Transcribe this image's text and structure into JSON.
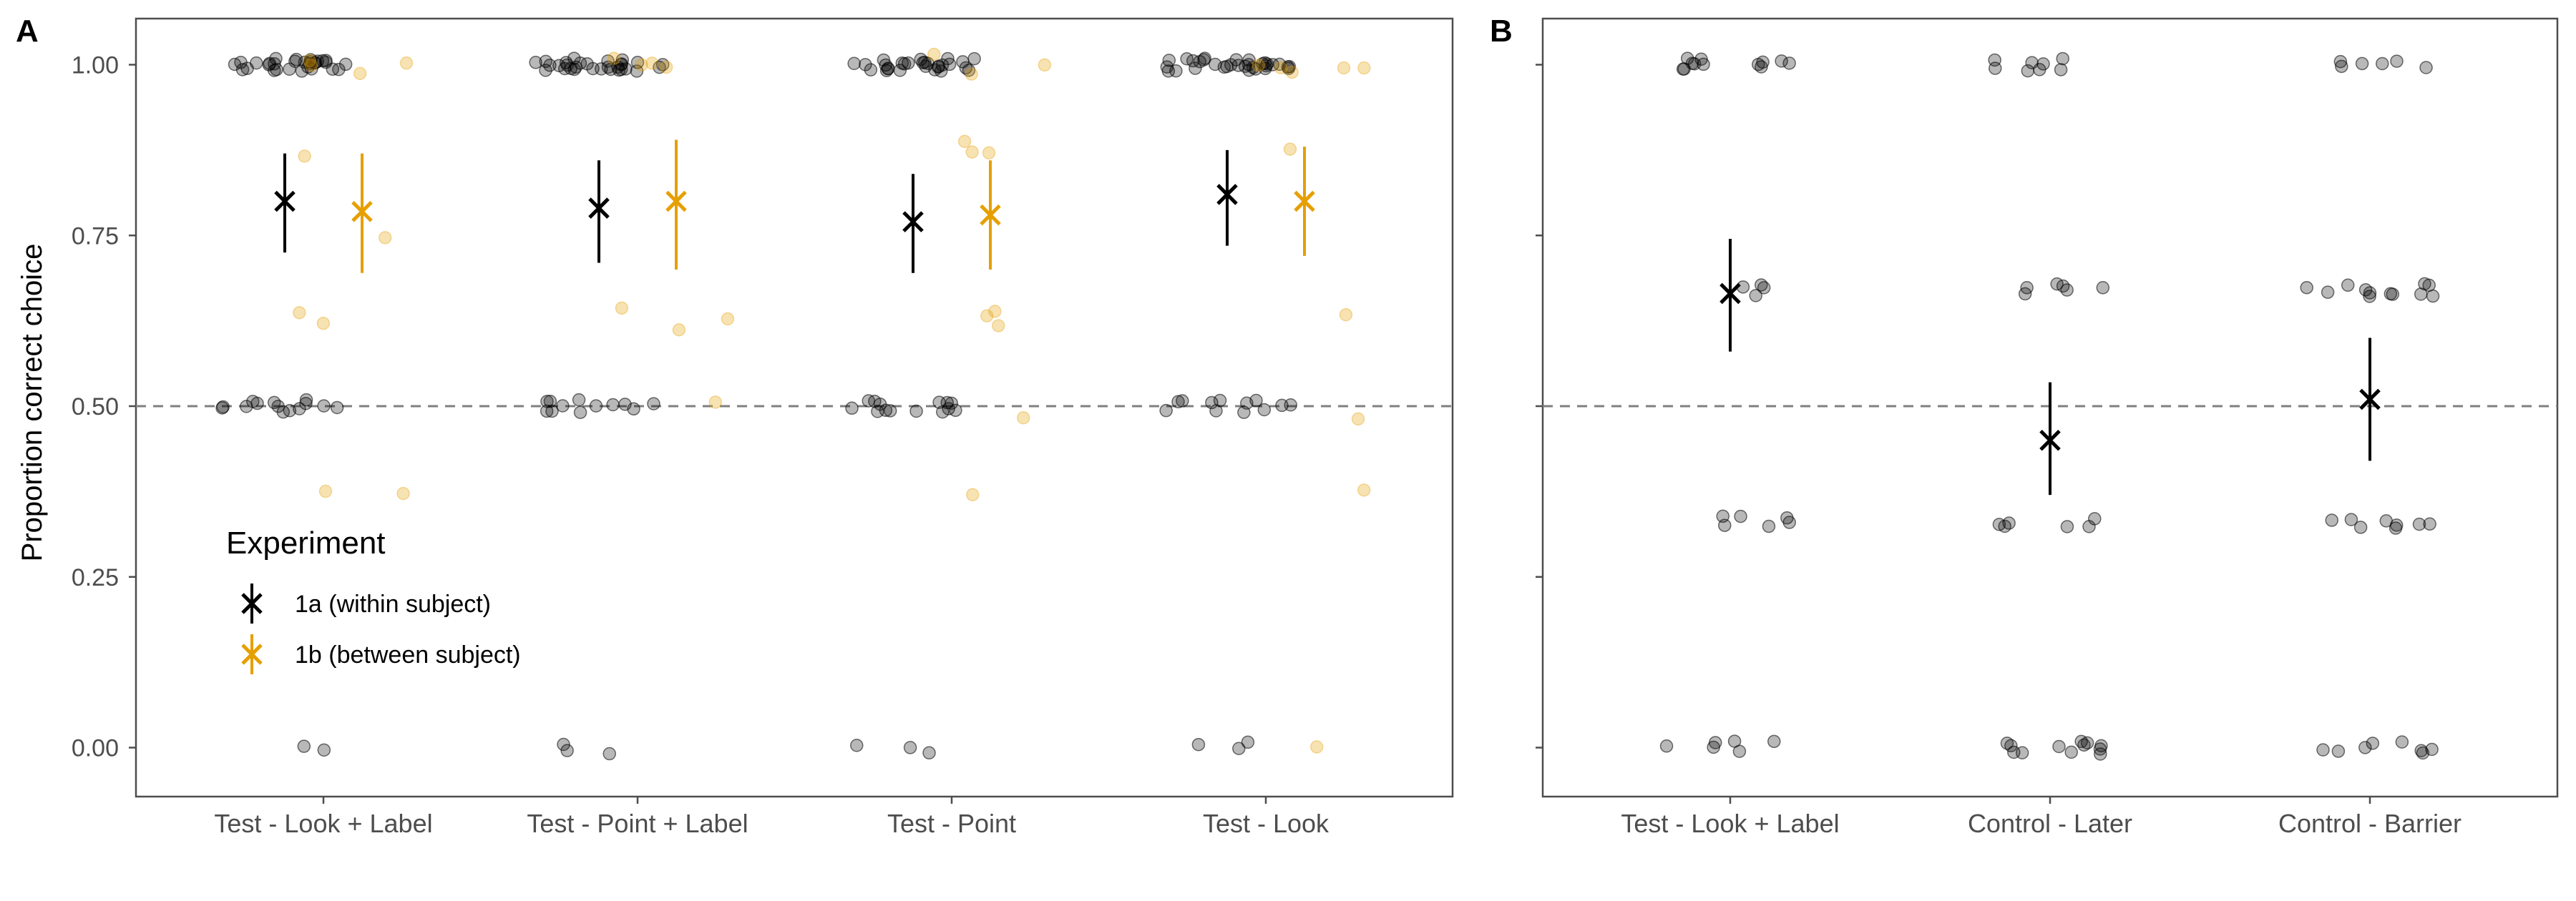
{
  "colors": {
    "exp1a": "#000000",
    "exp1b": "#E69F00",
    "panel_border": "#4d4d4d",
    "reference_line": "#7f7f7f",
    "tick_text": "#4d4d4d"
  },
  "shared_ylabel": "Proportion correct choice",
  "legend": {
    "title": "Experiment",
    "entries": [
      {
        "label": "1a (within subject)",
        "color": "#000000"
      },
      {
        "label": "1b (between subject)",
        "color": "#E69F00"
      }
    ]
  },
  "chart_data": [
    {
      "panel_label": "A",
      "type": "scatter",
      "ylim": [
        -0.07,
        1.07
      ],
      "yticks": [
        "0.00",
        "0.25",
        "0.50",
        "0.75",
        "1.00"
      ],
      "ytick_values": [
        0,
        0.25,
        0.5,
        0.75,
        1.0
      ],
      "reference_line": 0.5,
      "categories": [
        "Test - Look + Label",
        "Test - Point + Label",
        "Test - Point",
        "Test - Look"
      ],
      "legend_position": "bottom-left",
      "series": [
        {
          "name": "1a (within subject)",
          "color": "#000000",
          "summary": [
            {
              "category": "Test - Look + Label",
              "mean": 0.8,
              "lo": 0.725,
              "hi": 0.87
            },
            {
              "category": "Test - Point + Label",
              "mean": 0.79,
              "lo": 0.71,
              "hi": 0.86
            },
            {
              "category": "Test - Point",
              "mean": 0.77,
              "lo": 0.695,
              "hi": 0.84
            },
            {
              "category": "Test - Look",
              "mean": 0.81,
              "lo": 0.735,
              "hi": 0.875
            }
          ],
          "points": [
            {
              "category": "Test - Look + Label",
              "counts": {
                "1.00": 30,
                "0.50": 14,
                "0.00": 2
              }
            },
            {
              "category": "Test - Point + Label",
              "counts": {
                "1.00": 30,
                "0.50": 12,
                "0.00": 3
              }
            },
            {
              "category": "Test - Point",
              "counts": {
                "1.00": 28,
                "0.50": 14,
                "0.00": 3
              }
            },
            {
              "category": "Test - Look",
              "counts": {
                "1.00": 32,
                "0.50": 12,
                "0.00": 3
              }
            }
          ]
        },
        {
          "name": "1b (between subject)",
          "color": "#E69F00",
          "summary": [
            {
              "category": "Test - Look + Label",
              "mean": 0.785,
              "lo": 0.695,
              "hi": 0.87
            },
            {
              "category": "Test - Point + Label",
              "mean": 0.8,
              "lo": 0.7,
              "hi": 0.89
            },
            {
              "category": "Test - Point",
              "mean": 0.78,
              "lo": 0.7,
              "hi": 0.86
            },
            {
              "category": "Test - Look",
              "mean": 0.8,
              "lo": 0.72,
              "hi": 0.88
            }
          ],
          "points": [
            {
              "category": "Test - Look + Label",
              "values": [
                1.0,
                0.995,
                0.995,
                0.995,
                0.87,
                0.745,
                0.63,
                0.625,
                0.375,
                0.375
              ]
            },
            {
              "category": "Test - Point + Label",
              "values": [
                1.005,
                1.005,
                1.0,
                0.995,
                0.635,
                0.62,
                0.62,
                0.5
              ]
            },
            {
              "category": "Test - Point",
              "values": [
                1.01,
                1.005,
                0.995,
                0.88,
                0.875,
                0.87,
                0.635,
                0.63,
                0.625,
                0.49,
                0.37
              ]
            },
            {
              "category": "Test - Look",
              "values": [
                1.0,
                0.995,
                0.995,
                0.995,
                0.995,
                0.875,
                0.635,
                0.49,
                0.37,
                0.005
              ]
            }
          ]
        }
      ]
    },
    {
      "panel_label": "B",
      "type": "scatter",
      "ylim": [
        -0.07,
        1.07
      ],
      "reference_line": 0.5,
      "categories": [
        "Test - Look + Label",
        "Control - Later",
        "Control - Barrier"
      ],
      "series": [
        {
          "name": "1a (within subject)",
          "color": "#000000",
          "summary": [
            {
              "category": "Test - Look + Label",
              "mean": 0.665,
              "lo": 0.58,
              "hi": 0.745
            },
            {
              "category": "Control - Later",
              "mean": 0.45,
              "lo": 0.37,
              "hi": 0.535
            },
            {
              "category": "Control - Barrier",
              "mean": 0.51,
              "lo": 0.42,
              "hi": 0.6
            }
          ],
          "points": [
            {
              "category": "Test - Look + Label",
              "counts": {
                "1.00": 12,
                "0.67": 4,
                "0.33": 6,
                "0.00": 6
              }
            },
            {
              "category": "Control - Later",
              "counts": {
                "1.00": 8,
                "0.67": 6,
                "0.33": 6,
                "0.00": 12
              }
            },
            {
              "category": "Control - Barrier",
              "counts": {
                "1.00": 6,
                "0.67": 12,
                "0.33": 8,
                "0.00": 8
              }
            }
          ]
        }
      ]
    }
  ]
}
